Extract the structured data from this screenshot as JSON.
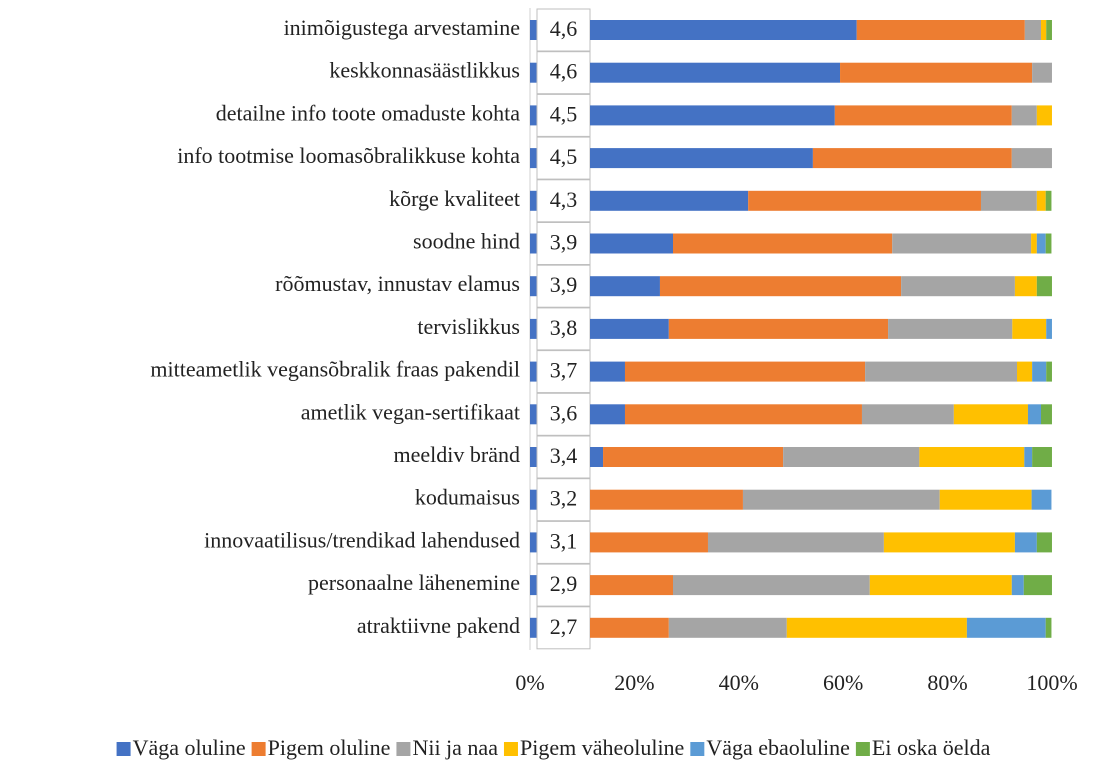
{
  "chart_data": {
    "type": "stacked-bar-horizontal",
    "categories": [
      "inimõigustega arvestamine",
      "keskkonnasäästlikkus",
      "detailne info toote omaduste kohta",
      "info tootmise loomasõbralikkuse kohta",
      "kõrge kvaliteet",
      "soodne hind",
      "rõõmustav, innustav elamus",
      "tervislikkus",
      "mitteametlik vegansõbralik fraas pakendil",
      "ametlik vegan-sertifikaat",
      "meeldiv bränd",
      "kodumaisus",
      "innovaatilisus/trendikad lahendused",
      "personaalne lähenemine",
      "atraktiivne pakend"
    ],
    "averages": [
      4.6,
      4.6,
      4.5,
      4.5,
      4.3,
      3.9,
      3.9,
      3.8,
      3.7,
      3.6,
      3.4,
      3.2,
      3.1,
      2.9,
      2.7
    ],
    "average_labels": [
      "4,6",
      "4,6",
      "4,5",
      "4,5",
      "4,3",
      "3,9",
      "3,9",
      "3,8",
      "3,7",
      "3,6",
      "3,4",
      "3,2",
      "3,1",
      "2,9",
      "2,7"
    ],
    "series": [
      {
        "name": "Väga oluline",
        "color": "#4472c4",
        "values": [
          51.1,
          47.9,
          46.9,
          42.7,
          30.3,
          15.9,
          13.4,
          15.1,
          6.7,
          6.7,
          2.5,
          0,
          0,
          0,
          0
        ]
      },
      {
        "name": "Pigem oluline",
        "color": "#ed7d31",
        "values": [
          32.2,
          36.8,
          33.9,
          38.1,
          44.6,
          42.0,
          46.2,
          42.0,
          46.0,
          45.4,
          34.5,
          29.3,
          22.6,
          15.9,
          15.1
        ]
      },
      {
        "name": "Nii ja naa",
        "color": "#a5a5a5",
        "values": [
          3.1,
          3.8,
          4.8,
          7.7,
          10.7,
          26.6,
          21.8,
          23.8,
          29.1,
          17.6,
          26.1,
          37.7,
          33.7,
          37.7,
          22.6
        ]
      },
      {
        "name": "Pigem väheoluline",
        "color": "#ffc000",
        "values": [
          1.0,
          0,
          2.9,
          0,
          1.7,
          1.1,
          4.2,
          6.5,
          2.9,
          14.2,
          20.1,
          17.6,
          25.1,
          27.2,
          34.5
        ]
      },
      {
        "name": "Väga ebaoluline",
        "color": "#5b9bd5",
        "values": [
          0,
          0,
          0,
          0,
          0,
          1.7,
          0,
          1.1,
          2.7,
          2.5,
          1.5,
          3.8,
          4.2,
          2.3,
          15.1
        ]
      },
      {
        "name": "Ei oska öelda",
        "color": "#70ad47",
        "values": [
          1.1,
          0,
          0,
          0,
          1.1,
          1.1,
          2.9,
          0,
          1.1,
          2.1,
          3.8,
          0,
          2.9,
          5.4,
          1.1
        ]
      }
    ],
    "xlim": [
      0,
      100
    ],
    "xticks": [
      {
        "value": 0,
        "label": "0%"
      },
      {
        "value": 20,
        "label": "20%"
      },
      {
        "value": 40,
        "label": "40%"
      },
      {
        "value": 60,
        "label": "60%"
      },
      {
        "value": 80,
        "label": "80%"
      },
      {
        "value": 100,
        "label": "100%"
      }
    ]
  }
}
